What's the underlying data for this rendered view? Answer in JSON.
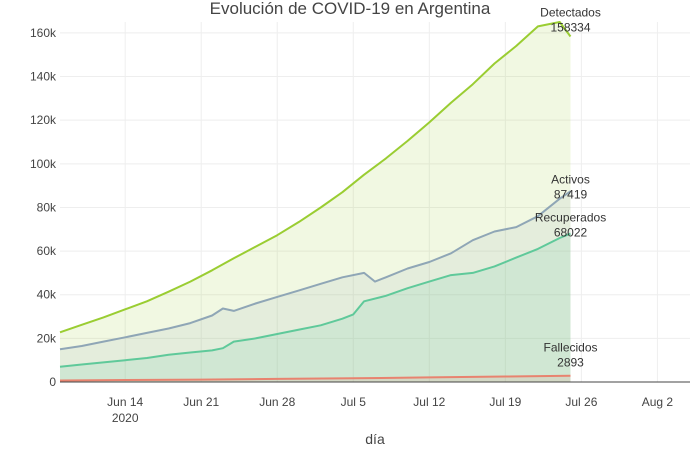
{
  "chart_data": {
    "type": "area",
    "title": "Evolución de COVID-19 en Argentina",
    "xlabel": "día",
    "ylabel": "",
    "x_start": "2020-06-08",
    "xlim": [
      "2020-06-08",
      "2020-08-05"
    ],
    "ylim": [
      0,
      165000
    ],
    "x_ticks": [
      {
        "date": "2020-06-14",
        "label": "Jun 14",
        "sub": "2020"
      },
      {
        "date": "2020-06-21",
        "label": "Jun 21",
        "sub": ""
      },
      {
        "date": "2020-06-28",
        "label": "Jun 28",
        "sub": ""
      },
      {
        "date": "2020-07-05",
        "label": "Jul 5",
        "sub": ""
      },
      {
        "date": "2020-07-12",
        "label": "Jul 12",
        "sub": ""
      },
      {
        "date": "2020-07-19",
        "label": "Jul 19",
        "sub": ""
      },
      {
        "date": "2020-07-26",
        "label": "Jul 26",
        "sub": ""
      },
      {
        "date": "2020-08-02",
        "label": "Aug 2",
        "sub": ""
      }
    ],
    "y_ticks": [
      {
        "value": 0,
        "label": "0"
      },
      {
        "value": 20000,
        "label": "20k"
      },
      {
        "value": 40000,
        "label": "40k"
      },
      {
        "value": 60000,
        "label": "60k"
      },
      {
        "value": 80000,
        "label": "80k"
      },
      {
        "value": 100000,
        "label": "100k"
      },
      {
        "value": 120000,
        "label": "120k"
      },
      {
        "value": 140000,
        "label": "140k"
      },
      {
        "value": 160000,
        "label": "160k"
      }
    ],
    "grid": true,
    "legend": "none",
    "series": [
      {
        "name": "Detectados",
        "color": "#9acd32",
        "fill": "rgba(154,205,50,0.14)",
        "last_value_label": "158334",
        "x": [
          "2020-06-08",
          "2020-06-10",
          "2020-06-12",
          "2020-06-14",
          "2020-06-16",
          "2020-06-18",
          "2020-06-20",
          "2020-06-22",
          "2020-06-24",
          "2020-06-26",
          "2020-06-28",
          "2020-06-30",
          "2020-07-02",
          "2020-07-04",
          "2020-07-06",
          "2020-07-08",
          "2020-07-10",
          "2020-07-12",
          "2020-07-14",
          "2020-07-16",
          "2020-07-18",
          "2020-07-20",
          "2020-07-22",
          "2020-07-24",
          "2020-07-25"
        ],
        "values": [
          22800,
          26200,
          29600,
          33300,
          37000,
          41400,
          46000,
          51200,
          56700,
          62000,
          67300,
          73400,
          80000,
          87000,
          95000,
          102500,
          110500,
          119000,
          128000,
          136500,
          146000,
          154000,
          163000,
          175000,
          158334
        ]
      },
      {
        "name": "Activos",
        "color": "#8fa6b6",
        "fill": "rgba(143,166,182,0.12)",
        "last_value_label": "87419",
        "x": [
          "2020-06-08",
          "2020-06-10",
          "2020-06-12",
          "2020-06-14",
          "2020-06-16",
          "2020-06-18",
          "2020-06-20",
          "2020-06-22",
          "2020-06-23",
          "2020-06-24",
          "2020-06-26",
          "2020-06-28",
          "2020-06-30",
          "2020-07-02",
          "2020-07-04",
          "2020-07-06",
          "2020-07-07",
          "2020-07-08",
          "2020-07-10",
          "2020-07-12",
          "2020-07-14",
          "2020-07-16",
          "2020-07-18",
          "2020-07-20",
          "2020-07-22",
          "2020-07-24",
          "2020-07-25"
        ],
        "values": [
          15000,
          16500,
          18500,
          20500,
          22500,
          24500,
          27000,
          30500,
          33700,
          32600,
          36000,
          39000,
          42000,
          45000,
          48000,
          50000,
          46000,
          48000,
          52000,
          55000,
          59000,
          65000,
          69000,
          71000,
          76000,
          84000,
          87419
        ]
      },
      {
        "name": "Recuperados",
        "color": "#5fc99a",
        "fill": "rgba(95,201,154,0.14)",
        "last_value_label": "68022",
        "x": [
          "2020-06-08",
          "2020-06-10",
          "2020-06-12",
          "2020-06-14",
          "2020-06-16",
          "2020-06-18",
          "2020-06-20",
          "2020-06-22",
          "2020-06-23",
          "2020-06-24",
          "2020-06-26",
          "2020-06-28",
          "2020-06-30",
          "2020-07-02",
          "2020-07-04",
          "2020-07-05",
          "2020-07-06",
          "2020-07-08",
          "2020-07-10",
          "2020-07-12",
          "2020-07-14",
          "2020-07-16",
          "2020-07-18",
          "2020-07-20",
          "2020-07-22",
          "2020-07-24",
          "2020-07-25"
        ],
        "values": [
          7000,
          8000,
          9000,
          10000,
          11000,
          12500,
          13500,
          14500,
          15500,
          18500,
          20000,
          22000,
          24000,
          26000,
          29000,
          31000,
          37000,
          39500,
          43000,
          46000,
          49000,
          50000,
          53000,
          57000,
          61000,
          66000,
          68022
        ]
      },
      {
        "name": "Fallecidos",
        "color": "#e8836f",
        "fill": "rgba(232,131,111,0.14)",
        "last_value_label": "2893",
        "x": [
          "2020-06-08",
          "2020-06-14",
          "2020-06-21",
          "2020-06-28",
          "2020-07-05",
          "2020-07-12",
          "2020-07-19",
          "2020-07-25"
        ],
        "values": [
          700,
          900,
          1100,
          1400,
          1700,
          2100,
          2500,
          2893
        ]
      }
    ]
  }
}
